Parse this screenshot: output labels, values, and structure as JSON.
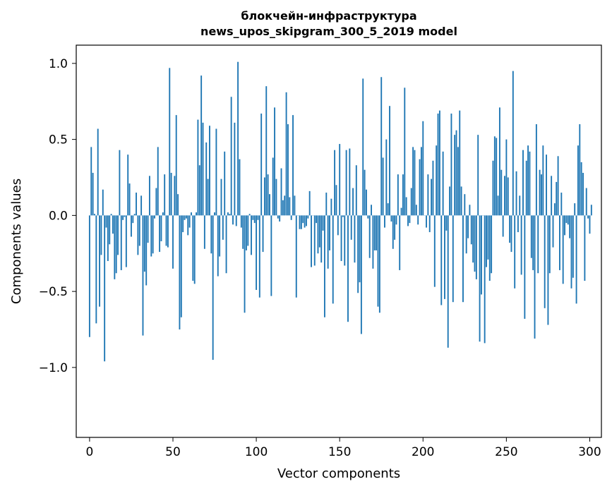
{
  "chart_data": {
    "type": "bar",
    "title": "блокчейн-инфраструктура",
    "subtitle": "news_upos_skipgram_300_5_2019 model",
    "xlabel": "Vector components",
    "ylabel": "Components values",
    "xlim": [
      -8,
      307
    ],
    "ylim": [
      -1.46,
      1.12
    ],
    "x_ticks": [
      0,
      50,
      100,
      150,
      200,
      250,
      300
    ],
    "y_ticks": [
      1.0,
      0.5,
      0.0,
      -0.5,
      -1.0
    ],
    "y_tick_labels": [
      "1.0",
      "0.5",
      "0.0",
      "−0.5",
      "−1.0"
    ],
    "grid": false,
    "legend": "none",
    "bar_color": "#1f77b4",
    "values": [
      -0.8,
      0.45,
      0.28,
      0.01,
      -0.71,
      0.57,
      -0.6,
      -0.26,
      0.17,
      -0.96,
      -0.08,
      -0.3,
      -0.19,
      0.01,
      -0.12,
      -0.42,
      -0.38,
      -0.26,
      0.43,
      -0.36,
      -0.03,
      -0.01,
      -0.34,
      0.4,
      0.21,
      -0.14,
      -0.05,
      0.01,
      0.15,
      -0.26,
      -0.2,
      0.13,
      -0.79,
      -0.37,
      -0.46,
      -0.18,
      0.26,
      -0.27,
      -0.25,
      -0.02,
      0.18,
      0.45,
      -0.24,
      -0.17,
      0.02,
      0.27,
      -0.2,
      -0.21,
      0.97,
      0.28,
      -0.35,
      0.26,
      0.66,
      0.14,
      -0.75,
      -0.67,
      -0.11,
      -0.03,
      -0.02,
      -0.13,
      -0.08,
      0.02,
      -0.43,
      -0.45,
      0.02,
      0.63,
      0.33,
      0.92,
      0.61,
      -0.22,
      0.48,
      0.24,
      0.59,
      -0.25,
      -0.95,
      0.02,
      0.57,
      -0.4,
      -0.27,
      0.24,
      -0.16,
      0.42,
      -0.38,
      0.02,
      0.01,
      0.78,
      -0.06,
      0.61,
      -0.07,
      1.01,
      0.37,
      -0.08,
      -0.22,
      -0.64,
      -0.23,
      -0.2,
      0.01,
      -0.26,
      -0.03,
      -0.05,
      -0.49,
      -0.03,
      -0.54,
      0.67,
      -0.24,
      0.25,
      0.85,
      0.27,
      0.14,
      -0.53,
      0.38,
      0.71,
      0.24,
      -0.02,
      -0.04,
      0.31,
      0.1,
      0.13,
      0.81,
      0.6,
      0.12,
      -0.03,
      0.66,
      0.13,
      -0.54,
      0.0,
      -0.09,
      -0.09,
      -0.05,
      -0.08,
      -0.07,
      -0.02,
      0.16,
      -0.34,
      0.0,
      -0.33,
      -0.05,
      -0.25,
      -0.21,
      -0.31,
      -0.1,
      -0.67,
      0.15,
      -0.35,
      -0.23,
      0.11,
      -0.58,
      0.43,
      0.2,
      -0.13,
      0.47,
      -0.3,
      -0.01,
      -0.33,
      0.43,
      -0.7,
      0.44,
      -0.16,
      0.18,
      -0.31,
      0.33,
      -0.51,
      -0.44,
      -0.78,
      0.9,
      0.3,
      0.17,
      -0.02,
      -0.28,
      0.07,
      -0.35,
      -0.23,
      -0.23,
      -0.6,
      -0.64,
      0.91,
      0.38,
      -0.08,
      0.5,
      0.08,
      0.72,
      -0.04,
      -0.22,
      -0.16,
      -0.06,
      0.27,
      -0.36,
      0.05,
      0.27,
      0.84,
      0.12,
      -0.07,
      -0.05,
      0.18,
      0.45,
      0.43,
      0.07,
      -0.06,
      0.37,
      0.45,
      0.62,
      0.0,
      -0.08,
      0.27,
      -0.11,
      0.24,
      0.36,
      -0.47,
      0.46,
      0.67,
      0.69,
      -0.59,
      0.42,
      -0.55,
      -0.1,
      -0.87,
      0.19,
      0.67,
      -0.57,
      0.53,
      0.56,
      0.45,
      0.69,
      0.19,
      -0.57,
      0.14,
      -0.25,
      -0.15,
      0.07,
      -0.19,
      -0.31,
      -0.37,
      -0.42,
      0.53,
      -0.83,
      -0.52,
      0.0,
      -0.84,
      -0.34,
      -0.29,
      -0.43,
      -0.38,
      0.36,
      0.52,
      0.51,
      0.13,
      0.71,
      0.3,
      -0.14,
      0.26,
      0.5,
      0.25,
      -0.18,
      -0.24,
      0.95,
      -0.48,
      0.29,
      -0.11,
      0.13,
      -0.39,
      0.43,
      -0.68,
      0.36,
      0.46,
      0.42,
      -0.28,
      -0.36,
      -0.81,
      0.6,
      -0.38,
      0.3,
      0.27,
      0.46,
      -0.61,
      0.4,
      -0.72,
      -0.38,
      0.26,
      -0.21,
      0.08,
      0.22,
      0.39,
      -0.36,
      0.15,
      -0.45,
      -0.13,
      -0.05,
      -0.06,
      -0.15,
      -0.48,
      -0.41,
      0.08,
      -0.58,
      0.46,
      0.6,
      0.35,
      0.28,
      -0.43,
      0.18,
      -0.02,
      -0.12,
      0.07
    ]
  }
}
